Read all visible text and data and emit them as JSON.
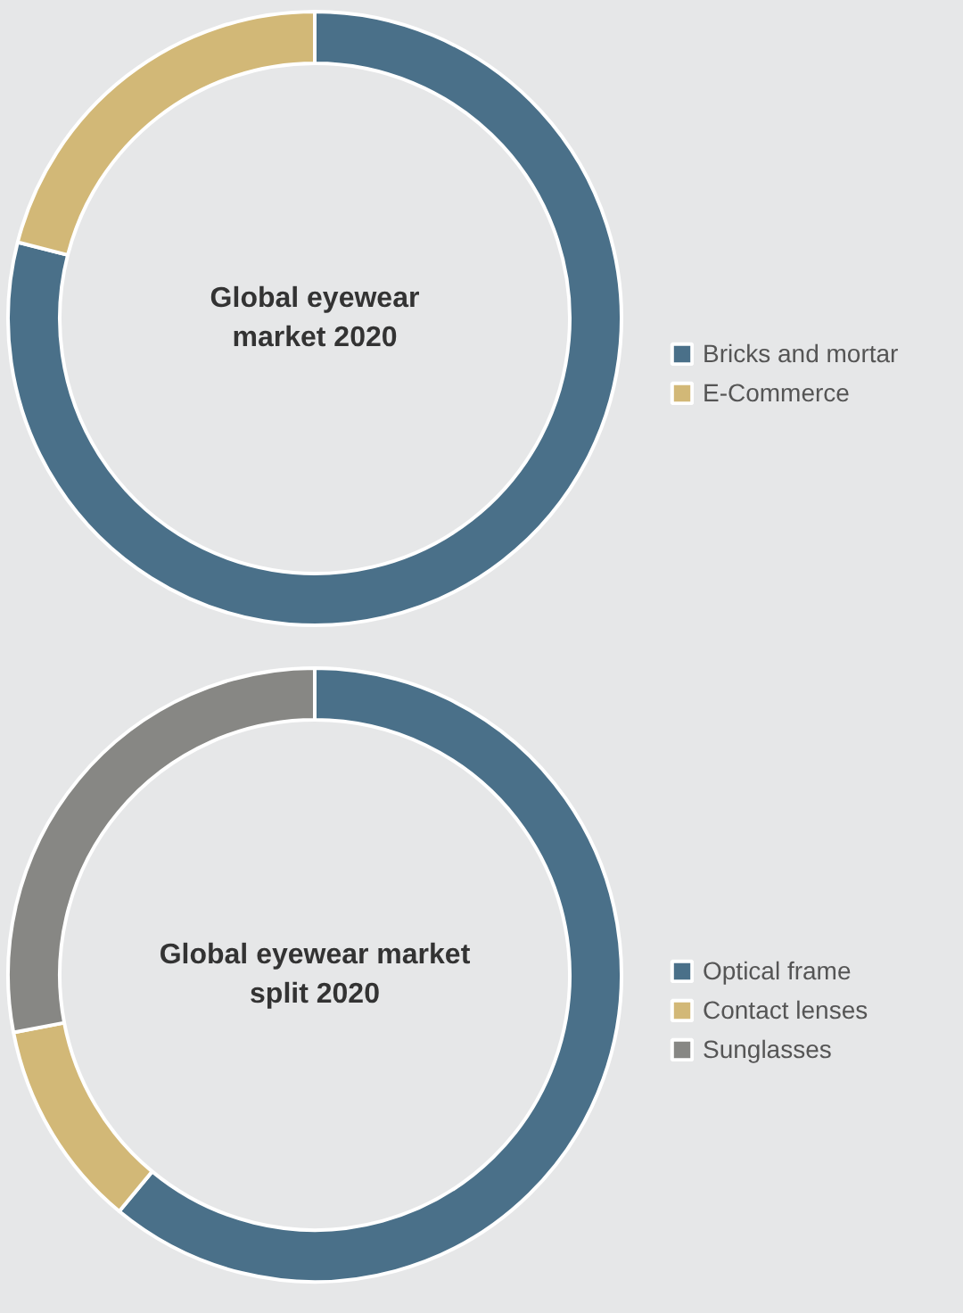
{
  "chart_data": [
    {
      "type": "donut",
      "title": "Global eyewear market 2020",
      "categories": [
        "Bricks and mortar",
        "E-Commerce"
      ],
      "values": [
        79,
        21
      ],
      "colors": [
        "#4a7089",
        "#d2b877"
      ],
      "legend": "right"
    },
    {
      "type": "donut",
      "title": "Global eyewear market split 2020",
      "categories": [
        "Optical frame",
        "Contact lenses",
        "Sunglasses"
      ],
      "values": [
        61,
        11,
        28
      ],
      "colors": [
        "#4a7089",
        "#d2b877",
        "#878784"
      ],
      "legend": "right"
    }
  ]
}
